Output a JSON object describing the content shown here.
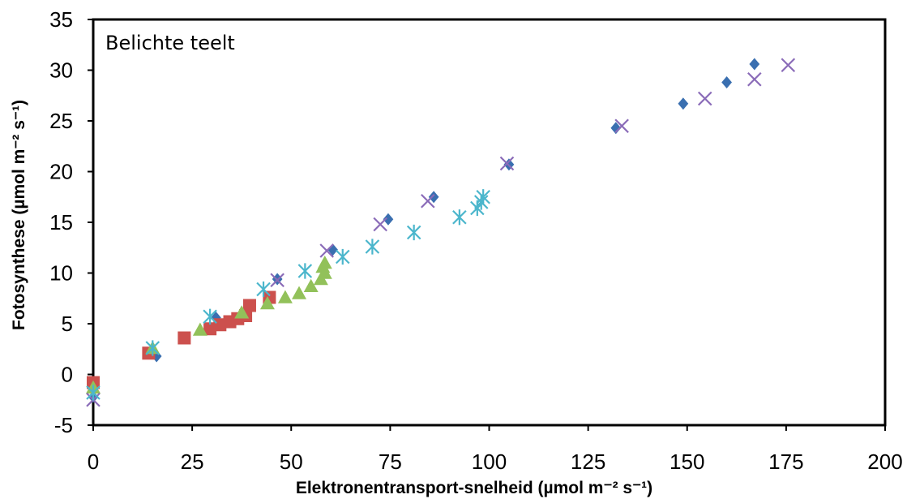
{
  "chart_data": {
    "type": "scatter",
    "annotation": "Belichte teelt",
    "xlabel": "Elektronentransport-snelheid (µmol m⁻² s⁻¹)",
    "ylabel": "Fotosynthese (µmol m⁻² s⁻¹)",
    "xlim": [
      0,
      200
    ],
    "ylim": [
      -5,
      35
    ],
    "xticks": [
      0,
      25,
      50,
      75,
      100,
      125,
      150,
      175,
      200
    ],
    "yticks": [
      -5,
      0,
      5,
      10,
      15,
      20,
      25,
      30,
      35
    ],
    "grid": false,
    "legend": "none",
    "series": [
      {
        "marker": "diamond",
        "color": "#3a6fb0",
        "points": [
          [
            0,
            -2.2
          ],
          [
            16,
            1.8
          ],
          [
            31,
            5.6
          ],
          [
            46.5,
            9.4
          ],
          [
            60.5,
            12.3
          ],
          [
            74.5,
            15.3
          ],
          [
            86,
            17.5
          ],
          [
            105,
            20.7
          ],
          [
            132,
            24.3
          ],
          [
            149,
            26.7
          ],
          [
            160,
            28.8
          ],
          [
            167,
            30.6
          ]
        ]
      },
      {
        "marker": "square",
        "color": "#cc504d",
        "points": [
          [
            0,
            -0.8
          ],
          [
            14,
            2.1
          ],
          [
            23,
            3.6
          ],
          [
            29.5,
            4.5
          ],
          [
            32,
            4.9
          ],
          [
            34.5,
            5.2
          ],
          [
            36.5,
            5.5
          ],
          [
            38.5,
            5.8
          ],
          [
            39.5,
            6.8
          ],
          [
            44.5,
            7.6
          ]
        ]
      },
      {
        "marker": "triangle",
        "color": "#92c15a",
        "points": [
          [
            0,
            -1.3
          ],
          [
            15,
            2.6
          ],
          [
            27,
            4.4
          ],
          [
            37.5,
            6.1
          ],
          [
            44,
            7.0
          ],
          [
            48.5,
            7.6
          ],
          [
            52,
            8.0
          ],
          [
            55,
            8.7
          ],
          [
            57.5,
            9.4
          ],
          [
            58.5,
            10.0
          ],
          [
            58,
            10.6
          ],
          [
            58.5,
            11.0
          ]
        ]
      },
      {
        "marker": "x",
        "color": "#8a6bb8",
        "points": [
          [
            0,
            -2.5
          ],
          [
            46.5,
            9.3
          ],
          [
            59,
            12.2
          ],
          [
            72.5,
            14.8
          ],
          [
            84.5,
            17.1
          ],
          [
            104.5,
            20.8
          ],
          [
            133.5,
            24.5
          ],
          [
            154.5,
            27.2
          ],
          [
            167,
            29.1
          ],
          [
            175.5,
            30.5
          ]
        ]
      },
      {
        "marker": "asterisk",
        "color": "#4bb6cc",
        "points": [
          [
            0,
            -1.8
          ],
          [
            15,
            2.6
          ],
          [
            29.5,
            5.7
          ],
          [
            43,
            8.4
          ],
          [
            53.5,
            10.2
          ],
          [
            63,
            11.6
          ],
          [
            70.5,
            12.6
          ],
          [
            81,
            14.0
          ],
          [
            92.5,
            15.5
          ],
          [
            97,
            16.4
          ],
          [
            98,
            17.0
          ],
          [
            98.5,
            17.5
          ]
        ]
      }
    ]
  }
}
